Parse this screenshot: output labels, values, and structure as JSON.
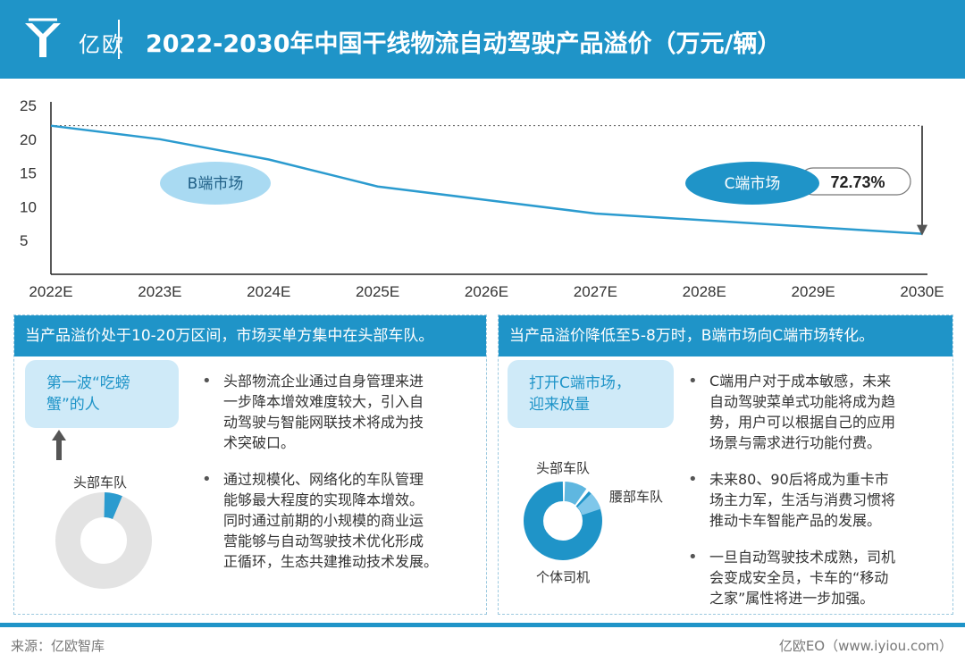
{
  "header": {
    "logo_text": "亿欧",
    "title": "2022-2030年中国干线物流自动驾驶产品溢价（万元/辆）"
  },
  "chart_data": {
    "type": "line",
    "x": [
      "2022E",
      "2023E",
      "2024E",
      "2025E",
      "2026E",
      "2027E",
      "2028E",
      "2029E",
      "2030E"
    ],
    "series": [
      {
        "values": [
          22,
          20,
          17,
          13,
          11,
          9,
          8,
          7,
          6
        ]
      }
    ],
    "ylim": [
      5,
      25
    ],
    "yticks": [
      25,
      20,
      15,
      10,
      5
    ],
    "annotations": {
      "b_market": "B端市场",
      "c_market": "C端市场",
      "decline": "72.73%"
    },
    "colors": {
      "line": "#2b9bcf",
      "b_ellipse": "#a9daf2",
      "c_ellipse": "#1f94c8"
    }
  },
  "left_panel": {
    "heading": "当产品溢价处于10-20万区间，市场买单方集中在头部车队。",
    "bubble": [
      "第一波“吃螃",
      "蟹”的人"
    ],
    "donut_label": "头部车队",
    "donut_share": 0.06,
    "bullets": [
      [
        "头部物流企业通过自身管理来进",
        "一步降本增效难度较大，引入自",
        "动驾驶与智能网联技术将成为技",
        "术突破口。"
      ],
      [
        "通过规模化、网络化的车队管理",
        "能够最大程度的实现降本增效。",
        "同时通过前期的小规模的商业运",
        "营能够与自动驾驶技术优化形成",
        "正循环，生态共建推动技术发展。"
      ]
    ]
  },
  "right_panel": {
    "heading": "当产品溢价降低至5-8万时，B端市场向C端市场转化。",
    "bubble": [
      "打开C端市场，",
      "迎来放量"
    ],
    "donut_labels": {
      "top": "头部车队",
      "mid": "腰部车队",
      "main": "个体司机"
    },
    "bullets": [
      [
        "C端用户对于成本敏感，未来",
        "自动驾驶菜单式功能将成为趋",
        "势，用户可以根据自己的应用",
        "场景与需求进行功能付费。"
      ],
      [
        "未来80、90后将成为重卡市",
        "场主力军，生活与消费习惯将",
        "推动卡车智能产品的发展。"
      ],
      [
        "一旦自动驾驶技术成熟，司机",
        "会变成安全员，卡车的“移动",
        "之家”属性将进一步加强。"
      ]
    ]
  },
  "footer": {
    "source": "来源：亿欧智库",
    "brand": "亿欧EO（www.iyiou.com）"
  }
}
